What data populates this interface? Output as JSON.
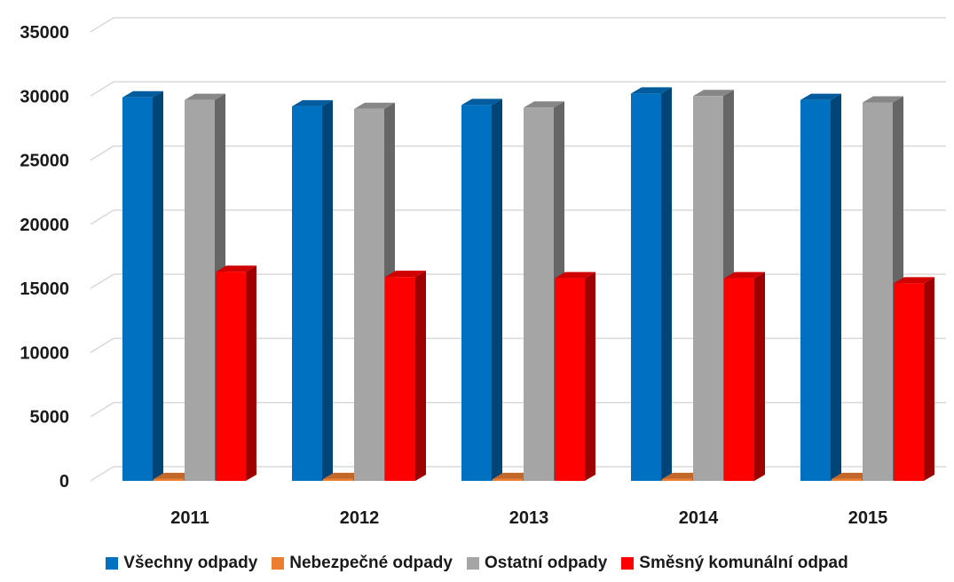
{
  "chart_data": {
    "type": "bar",
    "title": "",
    "xlabel": "",
    "ylabel": "",
    "categories": [
      "2011",
      "2012",
      "2013",
      "2014",
      "2015"
    ],
    "ylim": [
      0,
      35000
    ],
    "yticks": [
      0,
      5000,
      10000,
      15000,
      20000,
      25000,
      30000,
      35000
    ],
    "yticks_text": [
      "0",
      "5000",
      "10000",
      "15000",
      "20000",
      "25000",
      "30000",
      "35000"
    ],
    "grid": true,
    "legend_position": "bottom",
    "series": [
      {
        "name": "Všechny odpady",
        "color": "#0070C0",
        "values": [
          29900,
          29200,
          29300,
          30200,
          29700
        ]
      },
      {
        "name": "Nebezpečné odpady",
        "color": "#ED7D31",
        "values": [
          150,
          150,
          150,
          150,
          150
        ]
      },
      {
        "name": "Ostatní odpady",
        "color": "#A5A5A5",
        "values": [
          29700,
          29000,
          29100,
          30000,
          29500
        ]
      },
      {
        "name": "Směsný komunální odpad",
        "color": "#FF0000",
        "values": [
          16300,
          15900,
          15800,
          15800,
          15400
        ]
      }
    ]
  }
}
